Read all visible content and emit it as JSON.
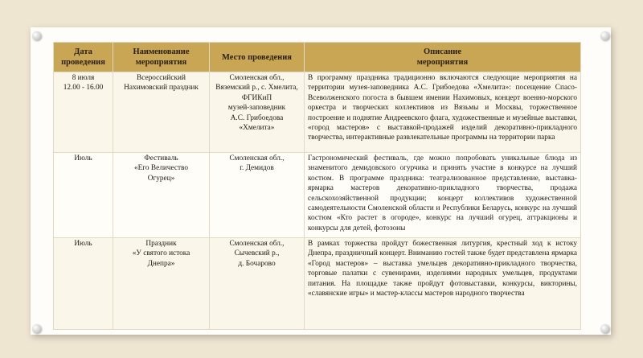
{
  "table": {
    "header": [
      [
        "Дата",
        "проведения"
      ],
      [
        "Наименование",
        "мероприятия"
      ],
      [
        "Место проведения"
      ],
      [
        "Описание",
        "мероприятия"
      ]
    ],
    "rows": [
      [
        [
          "8 июля",
          "12.00 - 16.00"
        ],
        [
          "Всероссийский",
          "Нахимовский праздник"
        ],
        [
          "Смоленская обл.,",
          "Вяземский р., с. Хмелита,",
          "ФГИКиП",
          "музей-заповедник",
          "А.С. Грибоедова",
          "«Хмелита»"
        ],
        "В программу праздника традиционно включаются следующие мероприятия на территории музея-заповедника А.С. Грибоедова «Хмелита»: посещение Спасо-Всеволженского погоста в бывшем имении Нахимовых, концерт военно-морского оркестра и творческих коллективов из Вязьмы и Москвы, торжественное построение и поднятие Андреевского флага, художественные и музейные выставки, «город мастеров» с выставкой-продажей изделий декоративно-прикладного творчества, интерактивные развлекательные программы на территории парка"
      ],
      [
        [
          "Июль"
        ],
        [
          "Фестиваль",
          "«Его Величество",
          "Огурец»"
        ],
        [
          "Смоленская обл.,",
          "г. Демидов"
        ],
        "Гастрономический фестиваль, где можно попробовать уникальные блюда из знаменитого демидовского огурчика и принять участие в конкурсе на лучший костюм. В программе праздника: театрализованное представление, выставка-ярмарка мастеров декоративно-прикладного творчества, продажа сельскохозяйственной продукции; концерт коллективов художественной самодеятельности Смоленской области и Республики Беларусь, конкурс на лучший костюм «Кто растет в огороде», конкурс на лучший огурец, аттракционы и конкурсы для детей, фотозоны"
      ],
      [
        [
          "Июль"
        ],
        [
          "Праздник",
          "«У святого истока",
          "Днепра»"
        ],
        [
          "Смоленская обл.,",
          "Сычевский р.,",
          "д. Бочарово"
        ],
        "В рамках торжества пройдут божественная литургия, крестный ход к истоку Днепра, праздничный концерт. Вниманию гостей также будет представлена ярмарка «Город мастеров» – выставка умельцев декоративно-прикладного творчества, торговые палатки с сувенирами, изделиями народных умельцев, продуктами питания. На площадке также пройдут фотовыставки, конкурсы, викторины, «славянские игры» и мастер-классы мастеров народного творчества"
      ]
    ]
  }
}
